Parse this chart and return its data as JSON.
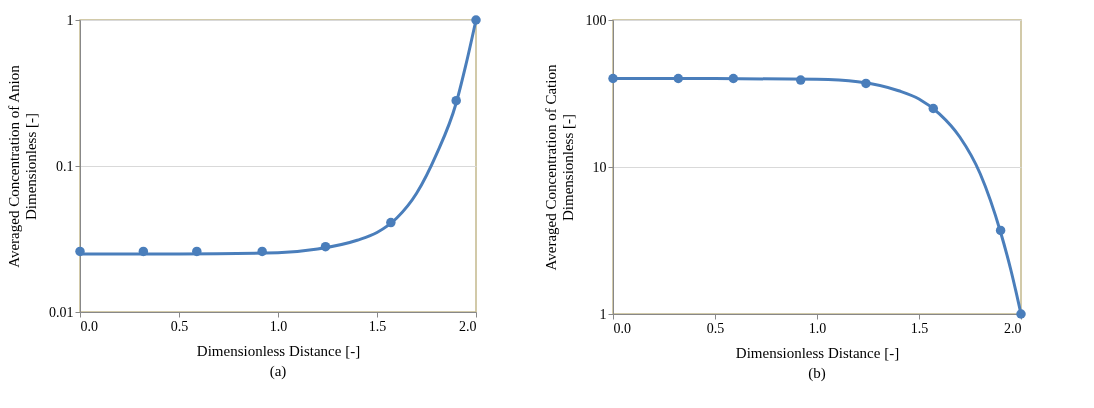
{
  "chart_data": [
    {
      "type": "line",
      "xlabel": "Dimensionless Distance [-]",
      "ylabel": "Averaged Concentration of Anion\nDimensionless [-]",
      "annotations": [
        "(a)"
      ],
      "log": "y",
      "grid": "y",
      "xlim": [
        0,
        2
      ],
      "xticks": [
        {
          "value": 0,
          "label": "0.0"
        },
        {
          "value": 0.5,
          "label": "0.5"
        },
        {
          "value": 1,
          "label": "1.0"
        },
        {
          "value": 1.5,
          "label": "1.5"
        },
        {
          "value": 2,
          "label": "2.0"
        }
      ],
      "ylim": [
        0.01,
        1
      ],
      "yticks": [
        0.01,
        0.1,
        1
      ],
      "series": [
        {
          "color": "#4a7ebb",
          "line_style": "solid",
          "x": [
            0,
            0.5,
            1.0,
            1.2,
            1.4,
            1.5,
            1.6,
            1.7,
            1.8,
            1.9,
            1.95,
            2.0
          ],
          "values": [
            0.025,
            0.025,
            0.0255,
            0.027,
            0.031,
            0.035,
            0.044,
            0.065,
            0.12,
            0.27,
            0.5,
            1.0
          ]
        },
        {
          "type": "scatter",
          "marker": "circle",
          "color": "#4a7ebb",
          "x": [
            0,
            0.32,
            0.59,
            0.92,
            1.24,
            1.57,
            1.9,
            2.0
          ],
          "values": [
            0.026,
            0.026,
            0.026,
            0.026,
            0.028,
            0.041,
            0.28,
            1.0
          ]
        }
      ]
    },
    {
      "type": "line",
      "xlabel": "Dimensionless Distance [-]",
      "ylabel": "Averaged Concentration of Cation\nDimensionless [-]",
      "annotations": [
        "(b)"
      ],
      "log": "y",
      "grid": "y",
      "xlim": [
        0,
        2
      ],
      "xticks": [
        {
          "value": 0,
          "label": "0.0"
        },
        {
          "value": 0.5,
          "label": "0.5"
        },
        {
          "value": 1,
          "label": "1.0"
        },
        {
          "value": 1.5,
          "label": "1.5"
        },
        {
          "value": 2,
          "label": "2.0"
        }
      ],
      "ylim": [
        1,
        100
      ],
      "yticks": [
        1,
        10,
        100
      ],
      "series": [
        {
          "color": "#4a7ebb",
          "line_style": "solid",
          "x": [
            0,
            0.5,
            1.0,
            1.2,
            1.4,
            1.5,
            1.6,
            1.7,
            1.8,
            1.9,
            1.95,
            2.0
          ],
          "values": [
            40,
            40,
            39.5,
            38,
            33,
            29,
            23,
            16,
            9,
            3.6,
            2,
            1
          ]
        },
        {
          "type": "scatter",
          "marker": "circle",
          "color": "#4a7ebb",
          "x": [
            0,
            0.32,
            0.59,
            0.92,
            1.24,
            1.57,
            1.9,
            2.0
          ],
          "values": [
            40,
            40,
            40,
            39,
            37,
            25,
            3.7,
            1
          ]
        }
      ]
    }
  ]
}
